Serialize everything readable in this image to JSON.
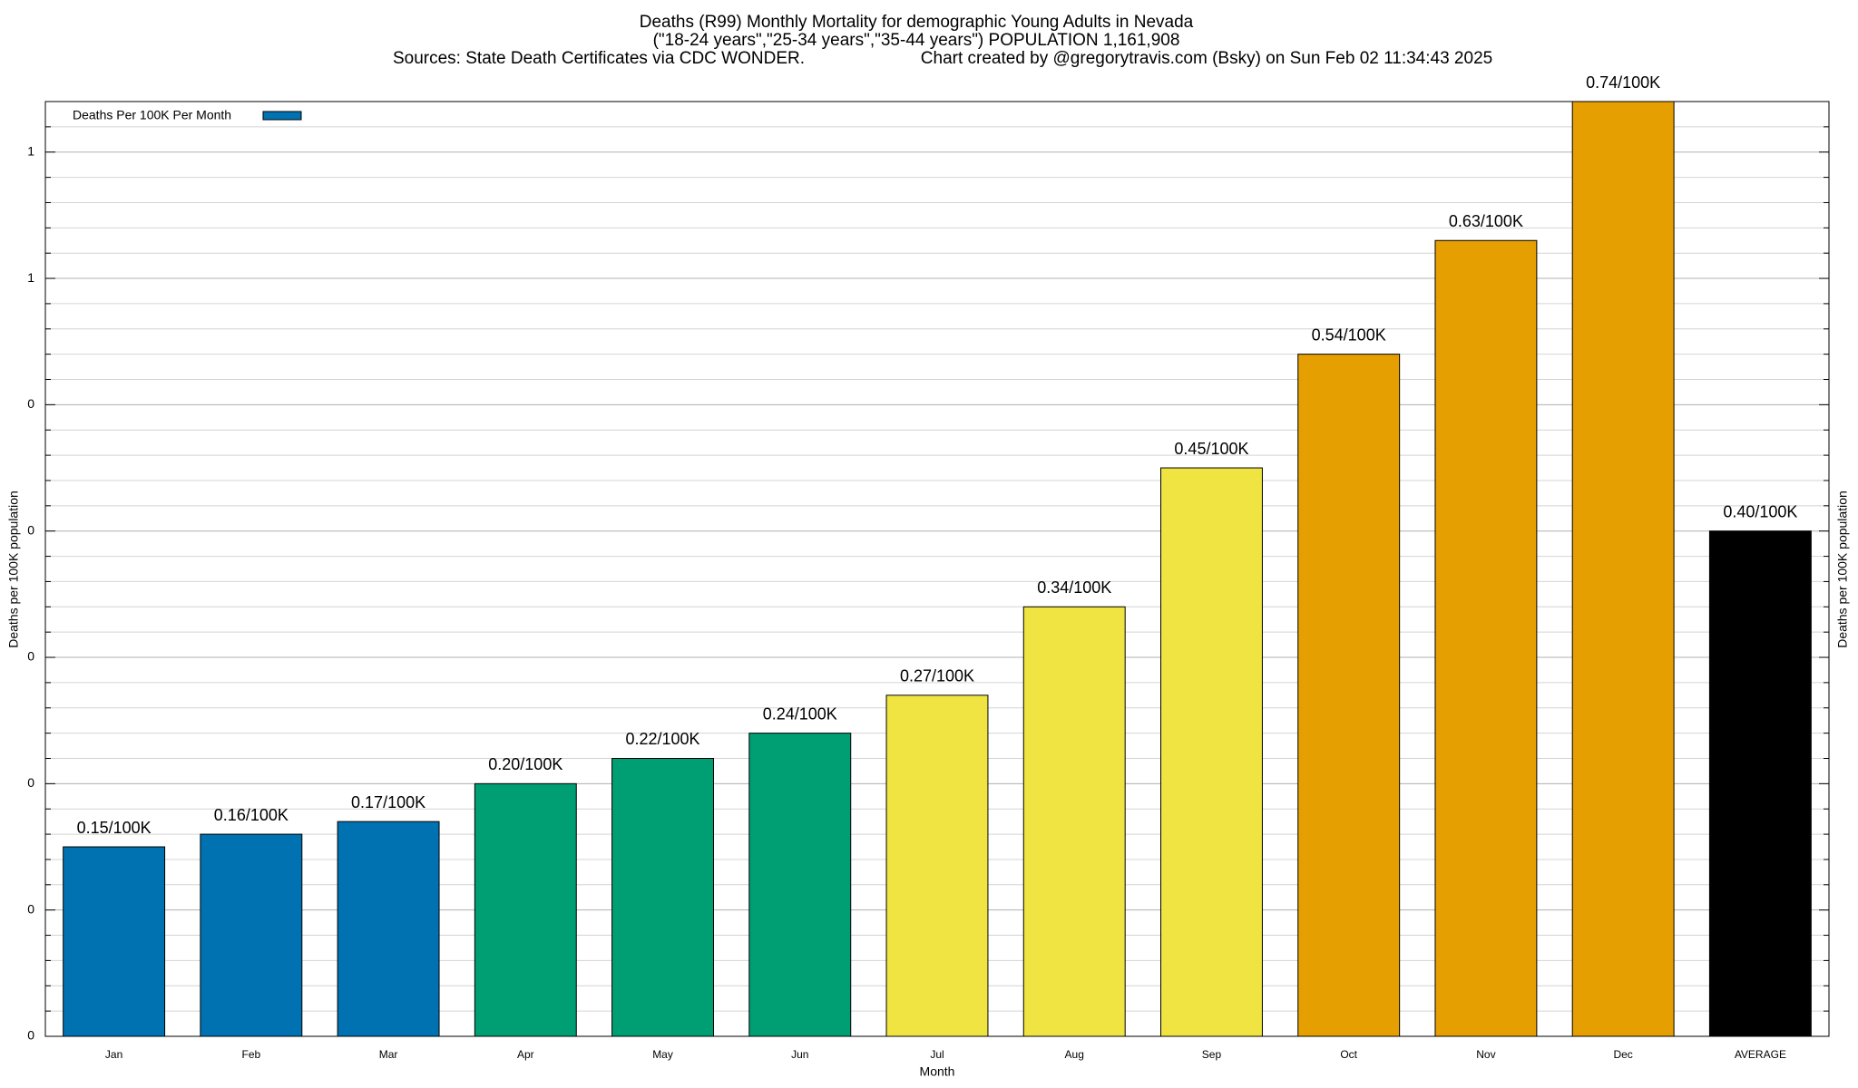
{
  "chart_data": {
    "type": "bar",
    "title": "Deaths (R99) Monthly Mortality for demographic Young Adults in Nevada",
    "subtitle": "(\"18-24 years\",\"25-34 years\",\"35-44 years\") POPULATION 1,161,908",
    "source": "Sources: State Death Certificates via CDC WONDER.",
    "credit": "Chart created by @gregorytravis.com (Bsky) on Sun Feb 02 11:34:43 2025",
    "x_label": "Month",
    "y_label": "Deaths per 100K population",
    "categories": [
      "Jan",
      "Feb",
      "Mar",
      "Apr",
      "May",
      "Jun",
      "Jul",
      "Aug",
      "Sep",
      "Oct",
      "Nov",
      "Dec",
      "AVERAGE"
    ],
    "series": [
      {
        "name": "Deaths Per 100K Per Month",
        "color": "#0072b2",
        "values": [
          0.15,
          0.16,
          0.17,
          0.2,
          0.22,
          0.24,
          0.27,
          0.34,
          0.45,
          0.54,
          0.63,
          0.74,
          0.4
        ],
        "value_labels": [
          "0.15/100K",
          "0.16/100K",
          "0.17/100K",
          "0.20/100K",
          "0.22/100K",
          "0.24/100K",
          "0.27/100K",
          "0.34/100K",
          "0.45/100K",
          "0.54/100K",
          "0.63/100K",
          "0.74/100K",
          "0.40/100K"
        ],
        "colors": [
          "#0072b2",
          "#0072b2",
          "#0072b2",
          "#009e73",
          "#009e73",
          "#009e73",
          "#f0e442",
          "#f0e442",
          "#f0e442",
          "#e69f00",
          "#e69f00",
          "#e69f00",
          "#000000"
        ]
      }
    ],
    "ylim": [
      0,
      0.74
    ],
    "yticks": [
      {
        "value": 0,
        "label": "0"
      },
      {
        "value": 0.1,
        "label": "0"
      },
      {
        "value": 0.2,
        "label": "0"
      },
      {
        "value": 0.3,
        "label": "0"
      },
      {
        "value": 0.4,
        "label": "0"
      },
      {
        "value": 0.5,
        "label": "0"
      },
      {
        "value": 0.6,
        "label": "1"
      },
      {
        "value": 0.7,
        "label": "1"
      }
    ],
    "yminorticks": [
      0.02,
      0.04,
      0.06,
      0.08,
      0.12,
      0.14,
      0.16,
      0.18,
      0.22,
      0.24,
      0.26,
      0.28,
      0.32,
      0.34,
      0.36,
      0.38,
      0.42,
      0.44,
      0.46,
      0.48,
      0.52,
      0.54,
      0.56,
      0.58,
      0.62,
      0.64,
      0.66,
      0.68,
      0.72
    ],
    "grid": true,
    "legend": "top-left"
  }
}
